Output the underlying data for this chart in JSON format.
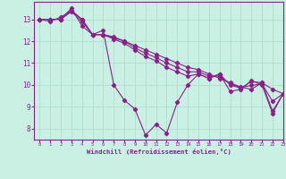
{
  "xlabel": "Windchill (Refroidissement éolien,°C)",
  "background_color": "#caf0e4",
  "grid_color": "#b0ddd0",
  "line_color": "#882288",
  "series": [
    {
      "x": [
        0,
        1,
        2,
        3,
        4,
        5,
        6,
        7,
        8,
        9,
        10,
        11,
        12,
        13,
        14,
        15,
        16,
        17,
        18,
        19,
        20,
        21,
        22,
        23
      ],
      "y": [
        13.0,
        12.9,
        13.1,
        13.4,
        13.0,
        12.3,
        12.5,
        10.0,
        9.3,
        8.9,
        7.7,
        8.2,
        7.8,
        9.2,
        10.0,
        10.5,
        10.3,
        10.5,
        9.7,
        9.8,
        10.2,
        10.0,
        8.7,
        9.6
      ]
    },
    {
      "x": [
        0,
        1,
        2,
        3,
        4,
        5,
        6,
        7,
        8,
        9,
        10,
        11,
        12,
        13,
        14,
        15,
        16,
        17,
        18,
        19,
        20,
        21,
        22,
        23
      ],
      "y": [
        13.0,
        13.0,
        13.0,
        13.5,
        12.7,
        12.3,
        12.3,
        12.2,
        12.0,
        11.8,
        11.6,
        11.4,
        11.2,
        11.0,
        10.8,
        10.7,
        10.5,
        10.3,
        10.1,
        9.9,
        9.8,
        10.1,
        9.8,
        9.6
      ]
    },
    {
      "x": [
        0,
        1,
        2,
        3,
        4,
        5,
        6,
        7,
        8,
        9,
        10,
        11,
        12,
        13,
        14,
        15,
        16,
        17,
        18,
        19,
        20,
        21,
        22,
        23
      ],
      "y": [
        13.0,
        13.0,
        13.0,
        13.4,
        13.0,
        12.3,
        12.3,
        12.1,
        11.9,
        11.6,
        11.3,
        11.1,
        10.8,
        10.6,
        10.4,
        10.5,
        10.3,
        10.5,
        10.0,
        9.85,
        10.15,
        10.1,
        8.8,
        9.6
      ]
    },
    {
      "x": [
        0,
        1,
        2,
        3,
        4,
        5,
        6,
        7,
        8,
        9,
        10,
        11,
        12,
        13,
        14,
        15,
        16,
        17,
        18,
        19,
        20,
        21,
        22,
        23
      ],
      "y": [
        13.0,
        13.0,
        13.0,
        13.35,
        12.9,
        12.3,
        12.3,
        12.15,
        12.0,
        11.7,
        11.45,
        11.25,
        11.0,
        10.8,
        10.6,
        10.6,
        10.4,
        10.4,
        10.05,
        9.88,
        9.98,
        10.05,
        9.25,
        9.6
      ]
    }
  ],
  "xlim": [
    -0.5,
    23
  ],
  "ylim": [
    7.5,
    13.8
  ],
  "yticks": [
    8,
    9,
    10,
    11,
    12,
    13
  ],
  "xticks": [
    0,
    1,
    2,
    3,
    4,
    5,
    6,
    7,
    8,
    9,
    10,
    11,
    12,
    13,
    14,
    15,
    16,
    17,
    18,
    19,
    20,
    21,
    22,
    23
  ],
  "marker": "D",
  "markersize": 2.2,
  "linewidth": 0.8
}
